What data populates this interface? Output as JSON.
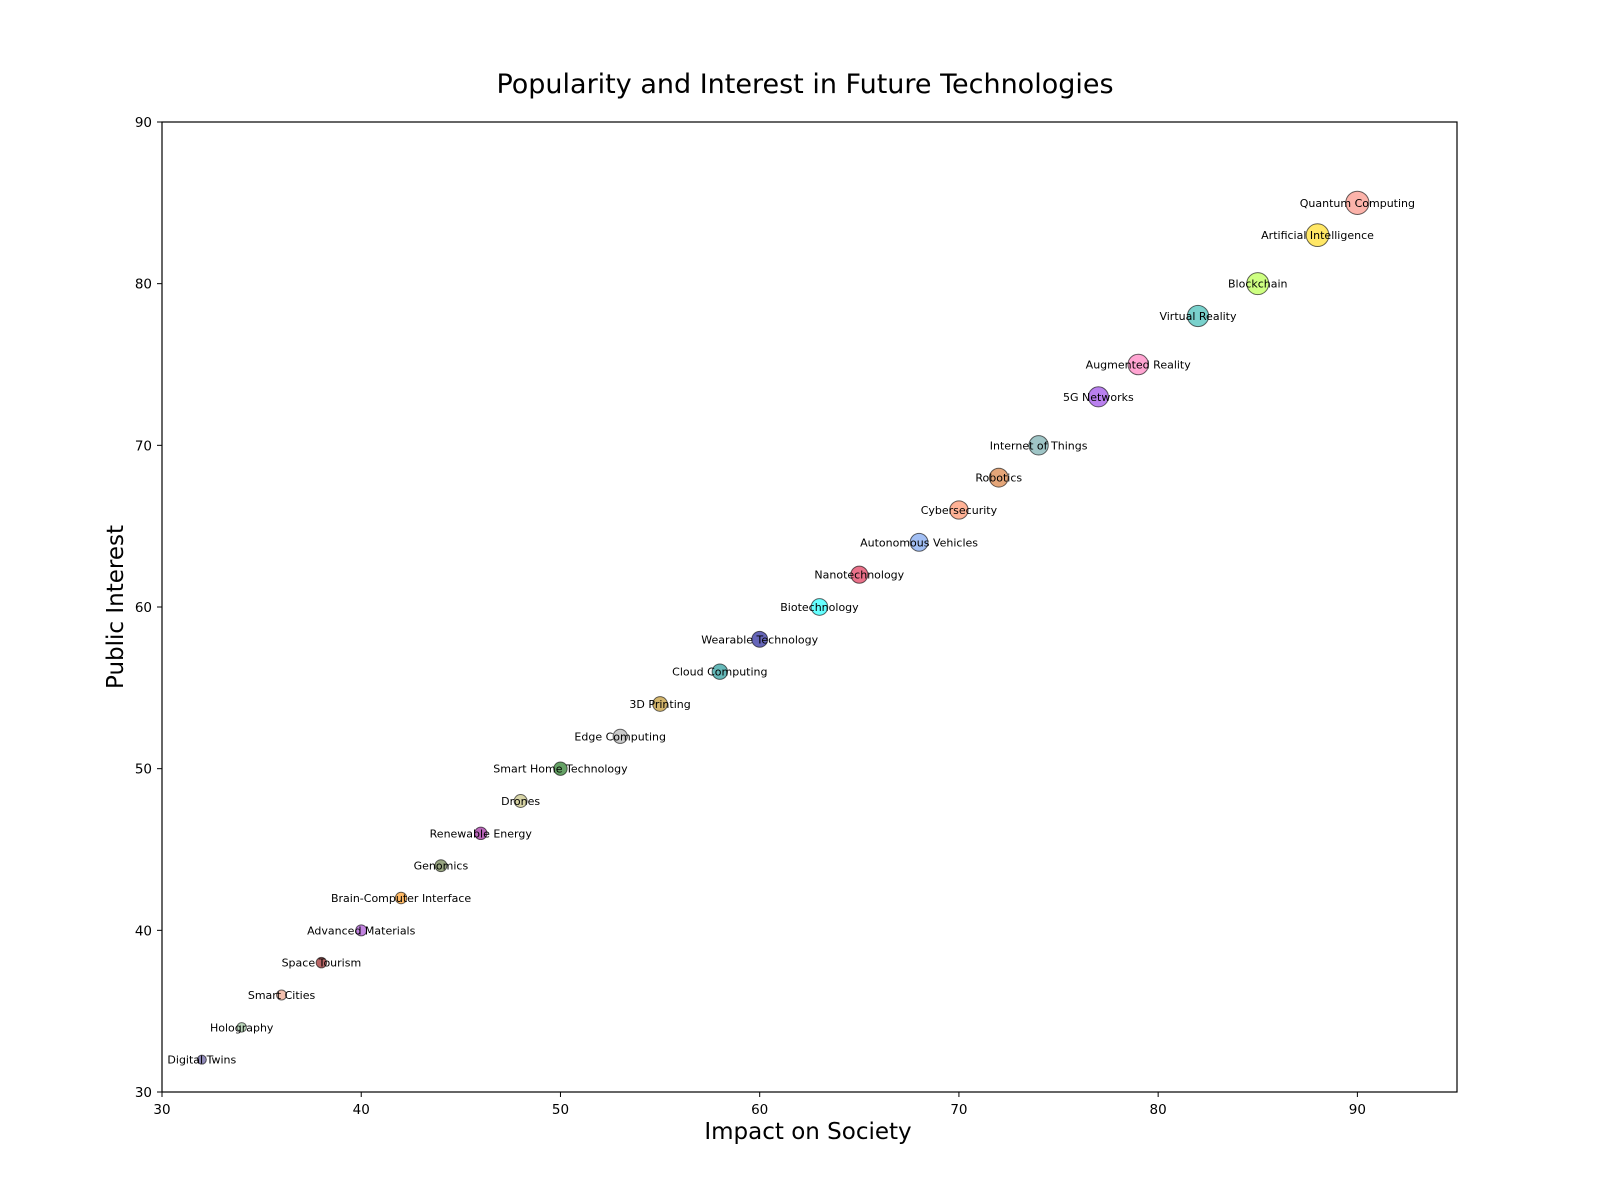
{
  "chart_data": {
    "type": "scatter",
    "title": "Popularity and Interest in Future Technologies",
    "xlabel": "Impact on Society",
    "ylabel": "Public Interest",
    "xlim": [
      30,
      95
    ],
    "ylim": [
      30,
      90
    ],
    "xticks": [
      30,
      40,
      50,
      60,
      70,
      80,
      90
    ],
    "yticks": [
      30,
      40,
      50,
      60,
      70,
      80,
      90
    ],
    "grid": false,
    "legend": "none",
    "points": [
      {
        "label": "Quantum Computing",
        "x": 90,
        "y": 85,
        "color": "#FA8072"
      },
      {
        "label": "Artificial Intelligence",
        "x": 88,
        "y": 83,
        "color": "#FFD700"
      },
      {
        "label": "Blockchain",
        "x": 85,
        "y": 80,
        "color": "#ADFF2F"
      },
      {
        "label": "Virtual Reality",
        "x": 82,
        "y": 78,
        "color": "#20B2AA"
      },
      {
        "label": "Augmented Reality",
        "x": 79,
        "y": 75,
        "color": "#FF69B4"
      },
      {
        "label": "5G Networks",
        "x": 77,
        "y": 73,
        "color": "#8A2BE2"
      },
      {
        "label": "Internet of Things",
        "x": 74,
        "y": 70,
        "color": "#5F9EA0"
      },
      {
        "label": "Robotics",
        "x": 72,
        "y": 68,
        "color": "#D2691E"
      },
      {
        "label": "Cybersecurity",
        "x": 70,
        "y": 66,
        "color": "#FF7F50"
      },
      {
        "label": "Autonomous Vehicles",
        "x": 68,
        "y": 64,
        "color": "#6495ED"
      },
      {
        "label": "Nanotechnology",
        "x": 65,
        "y": 62,
        "color": "#DC143C"
      },
      {
        "label": "Biotechnology",
        "x": 63,
        "y": 60,
        "color": "#00FFFF"
      },
      {
        "label": "Wearable Technology",
        "x": 60,
        "y": 58,
        "color": "#00008B"
      },
      {
        "label": "Cloud Computing",
        "x": 58,
        "y": 56,
        "color": "#008B8B"
      },
      {
        "label": "3D Printing",
        "x": 55,
        "y": 54,
        "color": "#B8860B"
      },
      {
        "label": "Edge Computing",
        "x": 53,
        "y": 52,
        "color": "#A9A9A9"
      },
      {
        "label": "Smart Home Technology",
        "x": 50,
        "y": 50,
        "color": "#006400"
      },
      {
        "label": "Drones",
        "x": 48,
        "y": 48,
        "color": "#BDB76B"
      },
      {
        "label": "Renewable Energy",
        "x": 46,
        "y": 46,
        "color": "#8B008B"
      },
      {
        "label": "Genomics",
        "x": 44,
        "y": 44,
        "color": "#556B2F"
      },
      {
        "label": "Brain-Computer Interface",
        "x": 42,
        "y": 42,
        "color": "#FF8C00"
      },
      {
        "label": "Advanced Materials",
        "x": 40,
        "y": 40,
        "color": "#9932CC"
      },
      {
        "label": "Space Tourism",
        "x": 38,
        "y": 38,
        "color": "#8B0000"
      },
      {
        "label": "Smart Cities",
        "x": 36,
        "y": 36,
        "color": "#E9967A"
      },
      {
        "label": "Holography",
        "x": 34,
        "y": 34,
        "color": "#8FBC8F"
      },
      {
        "label": "Digital Twins",
        "x": 32,
        "y": 32,
        "color": "#483D8B"
      }
    ]
  }
}
